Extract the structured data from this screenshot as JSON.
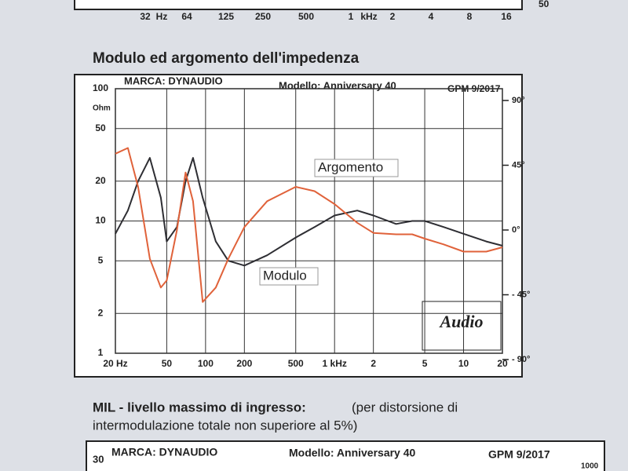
{
  "top_axis": {
    "labels": [
      "32",
      "Hz",
      "64",
      "125",
      "250",
      "500",
      "1",
      "kHz",
      "2",
      "4",
      "8",
      "16"
    ],
    "right_label": "50"
  },
  "section_title": "Modulo ed argomento dell'impedenza",
  "chart_data": {
    "type": "line",
    "brand": "MARCA: DYNAUDIO",
    "model": "Modello: Anniversary 40",
    "issue": "GPM 9/2017",
    "y_unit": "Ohm",
    "logo": "Audio",
    "log_x": true,
    "log_y": true,
    "grid": true,
    "xlim": [
      20,
      20000
    ],
    "xticks": [
      {
        "value": 20,
        "label": "20 Hz"
      },
      50,
      100,
      200,
      500,
      {
        "value": 1000,
        "label": "1 kHz"
      },
      {
        "value": 2000,
        "label": "2"
      },
      {
        "value": 5000,
        "label": "5"
      },
      {
        "value": 10000,
        "label": "10"
      },
      {
        "value": 20000,
        "label": "20"
      }
    ],
    "ylim": [
      1,
      100
    ],
    "yticks": [
      1,
      2,
      5,
      10,
      20,
      50,
      100
    ],
    "y2lim": [
      -90,
      90
    ],
    "y2ticks": [
      {
        "value": -90,
        "label": "- 90°"
      },
      {
        "value": -45,
        "label": "- 45°"
      },
      {
        "value": 0,
        "label": "0°"
      },
      {
        "value": 45,
        "label": "45°"
      },
      {
        "value": 90,
        "label": "90°"
      }
    ],
    "x": [
      20,
      25,
      30,
      37,
      45,
      50,
      60,
      70,
      80,
      95,
      120,
      150,
      200,
      300,
      500,
      700,
      1000,
      1500,
      2000,
      3000,
      4000,
      5000,
      7000,
      10000,
      15000,
      20000
    ],
    "series": [
      {
        "name": "Modulo",
        "color": "#2e2e33",
        "values": [
          8,
          12,
          20,
          30,
          15,
          7,
          9,
          20,
          30,
          15,
          7,
          5,
          4.6,
          5.5,
          7.5,
          9,
          11,
          12,
          11,
          9.5,
          10,
          10,
          9,
          8,
          7,
          6.5
        ]
      },
      {
        "name": "Argomento",
        "color": "#e0623a",
        "axis": "y2",
        "values": [
          53,
          57,
          30,
          -20,
          -40,
          -35,
          0,
          40,
          20,
          -50,
          -40,
          -20,
          2,
          20,
          30,
          27,
          18,
          5,
          -2,
          -3,
          -3,
          -6,
          -10,
          -15,
          -15,
          -12
        ]
      }
    ]
  },
  "subsection": {
    "title_bold": "MIL - livello massimo di ingresso:",
    "title_rest": "(per distorsione di",
    "title_line2": "intermodulazione totale non superiore al 5%)"
  },
  "bottom_chart": {
    "top_label": "30",
    "brand": "MARCA: DYNAUDIO",
    "model": "Modello: Anniversary 40",
    "issue": "GPM  9/2017",
    "right_label": "1000"
  }
}
